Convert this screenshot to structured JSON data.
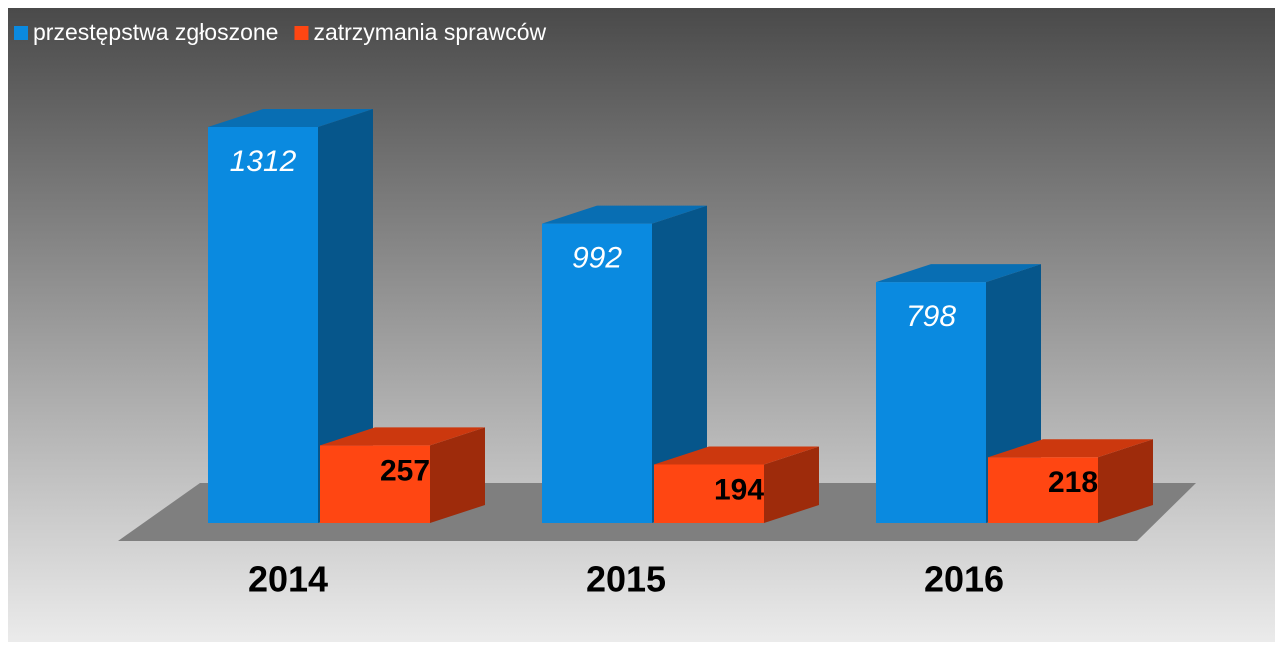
{
  "chart_data": {
    "type": "bar3d",
    "categories": [
      "2014",
      "2015",
      "2016"
    ],
    "series": [
      {
        "name": "przestępstwa zgłoszone",
        "color": "#0a8ae0",
        "values": [
          1312,
          992,
          798
        ]
      },
      {
        "name": "zatrzymania sprawców",
        "color": "#ff4612",
        "values": [
          257,
          194,
          218
        ]
      }
    ],
    "legend": "top-left"
  }
}
